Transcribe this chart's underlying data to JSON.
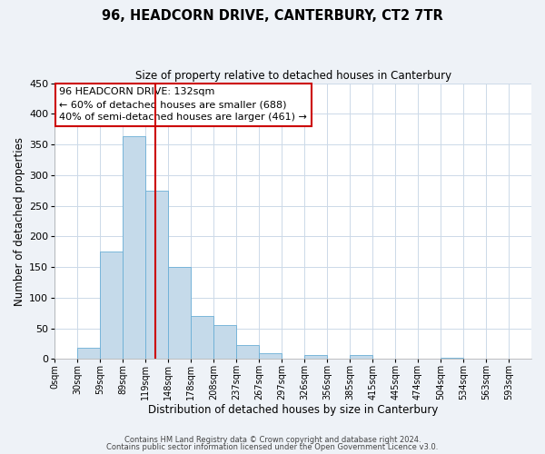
{
  "title": "96, HEADCORN DRIVE, CANTERBURY, CT2 7TR",
  "subtitle": "Size of property relative to detached houses in Canterbury",
  "xlabel": "Distribution of detached houses by size in Canterbury",
  "ylabel": "Number of detached properties",
  "footnote1": "Contains HM Land Registry data © Crown copyright and database right 2024.",
  "footnote2": "Contains public sector information licensed under the Open Government Licence v3.0.",
  "bin_labels": [
    "0sqm",
    "30sqm",
    "59sqm",
    "89sqm",
    "119sqm",
    "148sqm",
    "178sqm",
    "208sqm",
    "237sqm",
    "267sqm",
    "297sqm",
    "326sqm",
    "356sqm",
    "385sqm",
    "415sqm",
    "445sqm",
    "474sqm",
    "504sqm",
    "534sqm",
    "563sqm",
    "593sqm"
  ],
  "bar_values": [
    0,
    18,
    176,
    363,
    275,
    150,
    70,
    55,
    23,
    9,
    0,
    6,
    0,
    7,
    0,
    0,
    0,
    2,
    0,
    0,
    0
  ],
  "bar_color": "#c5daea",
  "bar_edge_color": "#6aaed6",
  "vline_x_index": 4,
  "vline_color": "#cc0000",
  "ylim": [
    0,
    450
  ],
  "yticks": [
    0,
    50,
    100,
    150,
    200,
    250,
    300,
    350,
    400,
    450
  ],
  "annotation_title": "96 HEADCORN DRIVE: 132sqm",
  "annotation_line1": "← 60% of detached houses are smaller (688)",
  "annotation_line2": "40% of semi-detached houses are larger (461) →",
  "annotation_box_color": "#cc0000",
  "bg_color": "#eef2f7",
  "plot_bg_color": "#ffffff",
  "grid_color": "#ccd9e8"
}
